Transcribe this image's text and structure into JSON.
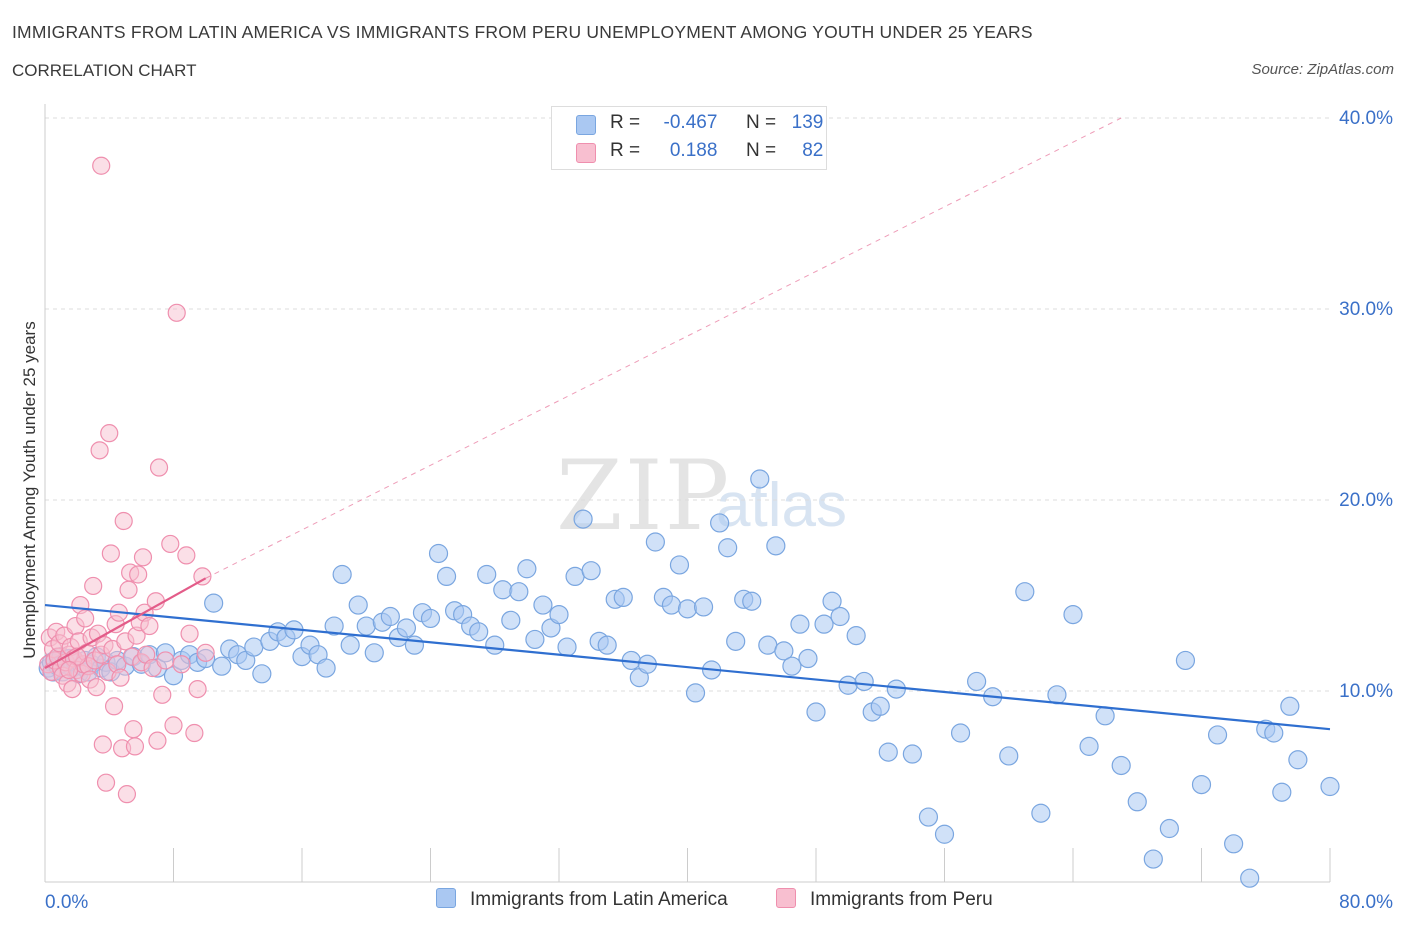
{
  "header": {
    "title": "IMMIGRANTS FROM LATIN AMERICA VS IMMIGRANTS FROM PERU UNEMPLOYMENT AMONG YOUTH UNDER 25 YEARS",
    "subtitle": "CORRELATION CHART",
    "source": "Source: ZipAtlas.com"
  },
  "watermark": {
    "zip": "ZIP",
    "atlas": "atlas"
  },
  "legend": {
    "latin": {
      "r_label": "R =",
      "r_value": "-0.467",
      "n_label": "N =",
      "n_value": "139"
    },
    "peru": {
      "r_label": "R =",
      "r_value": "0.188",
      "n_label": "N =",
      "n_value": "82"
    }
  },
  "colors": {
    "latin_fill": "#aac8f2",
    "latin_stroke": "#7aa6e0",
    "latin_line": "#2f6fd0",
    "peru_fill": "#f8bfd0",
    "peru_stroke": "#ef8fae",
    "peru_line": "#e35c89",
    "axis_label": "#3a70c8",
    "grid": "#dddddd"
  },
  "chart_data": {
    "type": "scatter",
    "title": "IMMIGRANTS FROM LATIN AMERICA VS IMMIGRANTS FROM PERU UNEMPLOYMENT AMONG YOUTH UNDER 25 YEARS",
    "xlabel": "",
    "ylabel": "Unemployment Among Youth under 25 years",
    "xlim": [
      0,
      80
    ],
    "ylim": [
      0,
      40
    ],
    "x_tick_labels": [
      "0.0%",
      "80.0%"
    ],
    "y_ticks": [
      10,
      20,
      30,
      40
    ],
    "y_tick_labels": [
      "10.0%",
      "20.0%",
      "30.0%",
      "40.0%"
    ],
    "grid": true,
    "legend_position": "top-center",
    "series": [
      {
        "name": "Immigrants from Latin America",
        "trend": {
          "x": [
            0,
            80
          ],
          "y": [
            14.5,
            8.0
          ],
          "style": "solid"
        },
        "points": [
          [
            0.2,
            11.2
          ],
          [
            0.4,
            11.5
          ],
          [
            0.5,
            11.0
          ],
          [
            0.6,
            11.6
          ],
          [
            0.8,
            11.3
          ],
          [
            1.0,
            11.8
          ],
          [
            1.1,
            11.0
          ],
          [
            1.3,
            11.4
          ],
          [
            1.5,
            11.7
          ],
          [
            1.7,
            11.2
          ],
          [
            1.9,
            11.5
          ],
          [
            2.1,
            10.9
          ],
          [
            2.3,
            11.3
          ],
          [
            2.5,
            11.6
          ],
          [
            2.7,
            11.0
          ],
          [
            2.9,
            11.4
          ],
          [
            3.2,
            11.8
          ],
          [
            3.5,
            11.2
          ],
          [
            3.8,
            11.5
          ],
          [
            4.1,
            11.0
          ],
          [
            4.5,
            11.6
          ],
          [
            5.0,
            11.3
          ],
          [
            5.5,
            11.8
          ],
          [
            6.0,
            11.4
          ],
          [
            6.5,
            11.9
          ],
          [
            7.0,
            11.2
          ],
          [
            7.5,
            12.0
          ],
          [
            8.0,
            10.8
          ],
          [
            8.5,
            11.6
          ],
          [
            9.0,
            11.9
          ],
          [
            9.5,
            11.5
          ],
          [
            10.0,
            11.7
          ],
          [
            10.5,
            14.6
          ],
          [
            11.0,
            11.3
          ],
          [
            11.5,
            12.2
          ],
          [
            12.0,
            11.9
          ],
          [
            12.5,
            11.6
          ],
          [
            13.0,
            12.3
          ],
          [
            13.5,
            10.9
          ],
          [
            14.0,
            12.6
          ],
          [
            14.5,
            13.1
          ],
          [
            15.0,
            12.8
          ],
          [
            15.5,
            13.2
          ],
          [
            16.0,
            11.8
          ],
          [
            16.5,
            12.4
          ],
          [
            17.0,
            11.9
          ],
          [
            17.5,
            11.2
          ],
          [
            18.0,
            13.4
          ],
          [
            18.5,
            16.1
          ],
          [
            19.0,
            12.4
          ],
          [
            19.5,
            14.5
          ],
          [
            20.0,
            13.4
          ],
          [
            20.5,
            12.0
          ],
          [
            21.0,
            13.6
          ],
          [
            21.5,
            13.9
          ],
          [
            22.0,
            12.8
          ],
          [
            22.5,
            13.3
          ],
          [
            23.0,
            12.4
          ],
          [
            23.5,
            14.1
          ],
          [
            24.0,
            13.8
          ],
          [
            24.5,
            17.2
          ],
          [
            25.0,
            16.0
          ],
          [
            25.5,
            14.2
          ],
          [
            26.0,
            14.0
          ],
          [
            26.5,
            13.4
          ],
          [
            27.0,
            13.1
          ],
          [
            27.5,
            16.1
          ],
          [
            28.0,
            12.4
          ],
          [
            28.5,
            15.3
          ],
          [
            29.0,
            13.7
          ],
          [
            29.5,
            15.2
          ],
          [
            30.0,
            16.4
          ],
          [
            30.5,
            12.7
          ],
          [
            31.0,
            14.5
          ],
          [
            31.5,
            13.3
          ],
          [
            32.0,
            14.0
          ],
          [
            32.5,
            12.3
          ],
          [
            33.0,
            16.0
          ],
          [
            33.5,
            19.0
          ],
          [
            34.0,
            16.3
          ],
          [
            34.5,
            12.6
          ],
          [
            35.0,
            12.4
          ],
          [
            35.5,
            14.8
          ],
          [
            36.0,
            14.9
          ],
          [
            36.5,
            11.6
          ],
          [
            37.0,
            10.7
          ],
          [
            37.5,
            11.4
          ],
          [
            38.0,
            17.8
          ],
          [
            38.5,
            14.9
          ],
          [
            39.0,
            14.5
          ],
          [
            39.5,
            16.6
          ],
          [
            40.0,
            14.3
          ],
          [
            40.5,
            9.9
          ],
          [
            41.0,
            14.4
          ],
          [
            41.5,
            11.1
          ],
          [
            42.0,
            18.8
          ],
          [
            42.5,
            17.5
          ],
          [
            43.0,
            12.6
          ],
          [
            43.5,
            14.8
          ],
          [
            44.0,
            14.7
          ],
          [
            44.5,
            21.1
          ],
          [
            45.0,
            12.4
          ],
          [
            45.5,
            17.6
          ],
          [
            46.0,
            12.1
          ],
          [
            46.5,
            11.3
          ],
          [
            47.0,
            13.5
          ],
          [
            47.5,
            11.7
          ],
          [
            48.0,
            8.9
          ],
          [
            48.5,
            13.5
          ],
          [
            49.0,
            14.7
          ],
          [
            49.5,
            13.9
          ],
          [
            50.0,
            10.3
          ],
          [
            50.5,
            12.9
          ],
          [
            51.0,
            10.5
          ],
          [
            51.5,
            8.9
          ],
          [
            52.0,
            9.2
          ],
          [
            52.5,
            6.8
          ],
          [
            53.0,
            10.1
          ],
          [
            54.0,
            6.7
          ],
          [
            55.0,
            3.4
          ],
          [
            56.0,
            2.5
          ],
          [
            57.0,
            7.8
          ],
          [
            58.0,
            10.5
          ],
          [
            59.0,
            9.7
          ],
          [
            60.0,
            6.6
          ],
          [
            61.0,
            15.2
          ],
          [
            62.0,
            3.6
          ],
          [
            63.0,
            9.8
          ],
          [
            64.0,
            14.0
          ],
          [
            65.0,
            7.1
          ],
          [
            66.0,
            8.7
          ],
          [
            67.0,
            6.1
          ],
          [
            68.0,
            4.2
          ],
          [
            69.0,
            1.2
          ],
          [
            70.0,
            2.8
          ],
          [
            71.0,
            11.6
          ],
          [
            72.0,
            5.1
          ],
          [
            73.0,
            7.7
          ],
          [
            74.0,
            2.0
          ],
          [
            75.0,
            0.2
          ],
          [
            76.0,
            8.0
          ],
          [
            76.5,
            7.8
          ],
          [
            77.0,
            4.7
          ],
          [
            77.5,
            9.2
          ],
          [
            78.0,
            6.4
          ],
          [
            80.0,
            5.0
          ]
        ]
      },
      {
        "name": "Immigrants from Peru",
        "trend": {
          "x": [
            0,
            10
          ],
          "y": [
            11.2,
            15.9
          ],
          "style": "solid",
          "dashed_to": [
            67,
            40
          ]
        },
        "points": [
          [
            0.2,
            11.4
          ],
          [
            0.3,
            12.8
          ],
          [
            0.4,
            11.0
          ],
          [
            0.5,
            12.2
          ],
          [
            0.6,
            11.6
          ],
          [
            0.7,
            13.1
          ],
          [
            0.8,
            11.8
          ],
          [
            0.9,
            12.5
          ],
          [
            1.0,
            11.2
          ],
          [
            1.1,
            10.8
          ],
          [
            1.2,
            12.9
          ],
          [
            1.3,
            11.5
          ],
          [
            1.4,
            10.4
          ],
          [
            1.5,
            11.9
          ],
          [
            1.6,
            12.3
          ],
          [
            1.7,
            10.1
          ],
          [
            1.8,
            11.7
          ],
          [
            1.9,
            13.4
          ],
          [
            2.0,
            11.1
          ],
          [
            2.1,
            12.6
          ],
          [
            2.2,
            14.5
          ],
          [
            2.3,
            10.9
          ],
          [
            2.4,
            11.4
          ],
          [
            2.5,
            13.8
          ],
          [
            2.6,
            12.0
          ],
          [
            2.7,
            11.3
          ],
          [
            2.8,
            10.6
          ],
          [
            2.9,
            12.8
          ],
          [
            3.0,
            15.5
          ],
          [
            3.1,
            11.6
          ],
          [
            3.2,
            10.2
          ],
          [
            3.3,
            13.0
          ],
          [
            3.4,
            22.6
          ],
          [
            3.5,
            11.9
          ],
          [
            3.6,
            7.2
          ],
          [
            3.7,
            12.4
          ],
          [
            3.8,
            5.2
          ],
          [
            3.9,
            11.0
          ],
          [
            4.0,
            23.5
          ],
          [
            4.1,
            17.2
          ],
          [
            4.2,
            12.2
          ],
          [
            4.3,
            9.2
          ],
          [
            4.4,
            13.5
          ],
          [
            4.5,
            11.4
          ],
          [
            4.6,
            14.1
          ],
          [
            4.7,
            10.7
          ],
          [
            4.8,
            7.0
          ],
          [
            4.9,
            18.9
          ],
          [
            5.0,
            12.6
          ],
          [
            5.1,
            4.6
          ],
          [
            5.2,
            15.3
          ],
          [
            5.3,
            16.2
          ],
          [
            5.4,
            11.8
          ],
          [
            5.5,
            8.0
          ],
          [
            5.6,
            7.1
          ],
          [
            5.7,
            12.9
          ],
          [
            5.8,
            16.1
          ],
          [
            5.9,
            13.6
          ],
          [
            6.0,
            11.5
          ],
          [
            6.1,
            17.0
          ],
          [
            6.2,
            14.1
          ],
          [
            6.3,
            11.9
          ],
          [
            6.5,
            13.4
          ],
          [
            6.7,
            11.2
          ],
          [
            6.9,
            14.7
          ],
          [
            7.0,
            7.4
          ],
          [
            7.1,
            21.7
          ],
          [
            7.3,
            9.8
          ],
          [
            7.5,
            11.6
          ],
          [
            7.8,
            17.7
          ],
          [
            8.0,
            8.2
          ],
          [
            8.2,
            29.8
          ],
          [
            8.5,
            11.4
          ],
          [
            8.8,
            17.1
          ],
          [
            9.0,
            13.0
          ],
          [
            9.3,
            7.8
          ],
          [
            9.5,
            10.1
          ],
          [
            9.8,
            16.0
          ],
          [
            10.0,
            12.0
          ],
          [
            3.5,
            37.5
          ],
          [
            2.0,
            11.8
          ],
          [
            1.5,
            11.1
          ]
        ]
      }
    ]
  },
  "bottom_legend": {
    "latin": "Immigrants from Latin America",
    "peru": "Immigrants from Peru"
  }
}
